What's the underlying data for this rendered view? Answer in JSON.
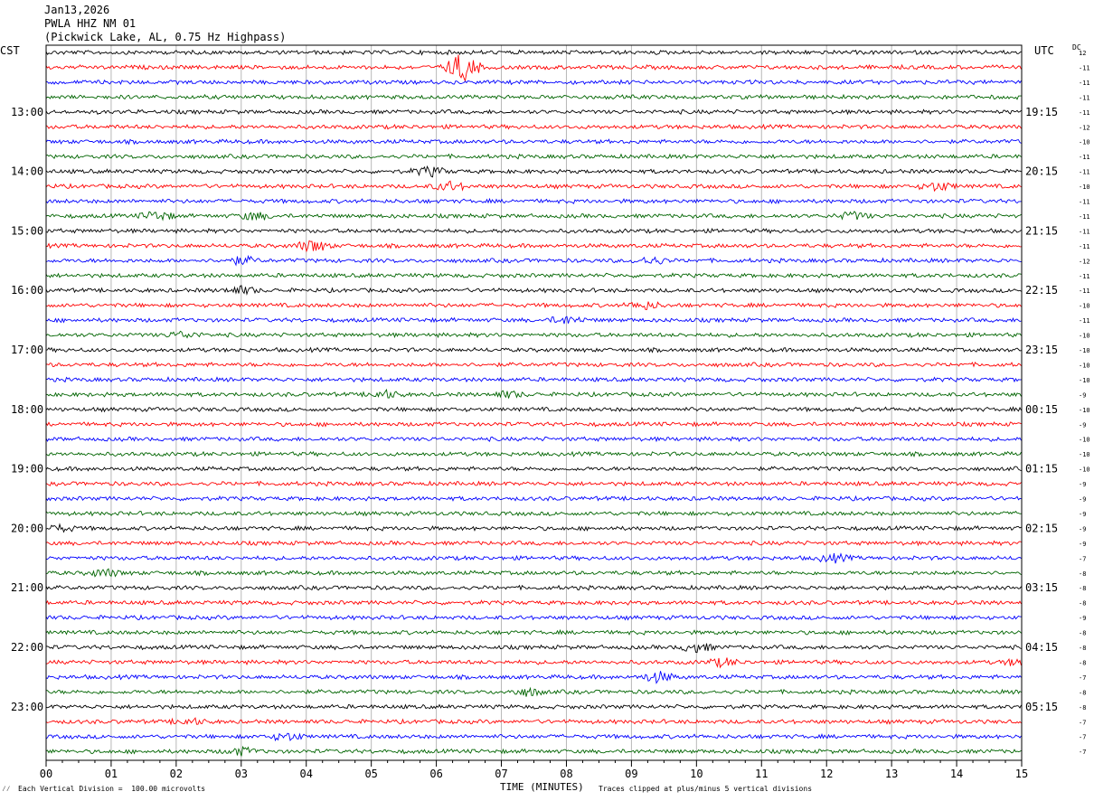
{
  "header": {
    "date": "Jan13,2026",
    "station": "PWLA HHZ NM 01",
    "location": "(Pickwick Lake, AL, 0.75 Hz Highpass)"
  },
  "left_zone": "CST",
  "right_zone": "UTC",
  "dc_label": "DC",
  "footer": {
    "scale": "Each Vertical Division =  100.00 microvolts",
    "clipping": "Traces clipped at plus/minus 5 vertical divisions",
    "corner_mark": "⁄⁄"
  },
  "chart_data": {
    "type": "line",
    "xlabel": "TIME (MINUTES)",
    "x_ticks": [
      "00",
      "01",
      "02",
      "03",
      "04",
      "05",
      "06",
      "07",
      "08",
      "09",
      "10",
      "11",
      "12",
      "13",
      "14",
      "15"
    ],
    "xlim": [
      0,
      15
    ],
    "trace_count": 48,
    "trace_colors": [
      "#000000",
      "#ff0000",
      "#0000ff",
      "#006400"
    ],
    "left_hour_labels": [
      "13:00",
      "14:00",
      "15:00",
      "16:00",
      "17:00",
      "18:00",
      "19:00",
      "20:00",
      "21:00",
      "22:00",
      "23:00"
    ],
    "right_hour_labels": [
      "19:15",
      "20:15",
      "21:15",
      "22:15",
      "23:15",
      "00:15",
      "01:15",
      "02:15",
      "03:15",
      "04:15",
      "05:15"
    ],
    "dc_offsets": [
      "12",
      "-11",
      "-11",
      "-11",
      "-11",
      "-12",
      "-10",
      "-11",
      "-11",
      "-10",
      "-11",
      "-11",
      "-11",
      "-11",
      "-12",
      "-11",
      "-11",
      "-10",
      "-11",
      "-10",
      "-10",
      "-10",
      "-10",
      "-9",
      "-10",
      "-9",
      "-10",
      "-10",
      "-10",
      "-9",
      "-9",
      "-9",
      "-9",
      "-9",
      "-7",
      "-8",
      "-8",
      "-8",
      "-9",
      "-8",
      "-8",
      "-8",
      "-7",
      "-8",
      "-8",
      "-7",
      "-7",
      "-7"
    ],
    "events": [
      {
        "trace": 2,
        "minute": 6.4,
        "strength": 10
      },
      {
        "trace": 9,
        "minute": 5.9,
        "strength": 3
      },
      {
        "trace": 10,
        "minute": 6.2,
        "strength": 3
      },
      {
        "trace": 10,
        "minute": 13.7,
        "strength": 3
      },
      {
        "trace": 12,
        "minute": 1.7,
        "strength": 3
      },
      {
        "trace": 12,
        "minute": 3.2,
        "strength": 2.5
      },
      {
        "trace": 12,
        "minute": 12.4,
        "strength": 2.5
      },
      {
        "trace": 14,
        "minute": 4.1,
        "strength": 4
      },
      {
        "trace": 15,
        "minute": 3.0,
        "strength": 2.5
      },
      {
        "trace": 15,
        "minute": 9.3,
        "strength": 2.5
      },
      {
        "trace": 17,
        "minute": 3.0,
        "strength": 2.5
      },
      {
        "trace": 18,
        "minute": 9.2,
        "strength": 2.5
      },
      {
        "trace": 19,
        "minute": 8.0,
        "strength": 2.5
      },
      {
        "trace": 20,
        "minute": 2.1,
        "strength": 2
      },
      {
        "trace": 24,
        "minute": 5.2,
        "strength": 2.5
      },
      {
        "trace": 24,
        "minute": 7.1,
        "strength": 2
      },
      {
        "trace": 33,
        "minute": 0.2,
        "strength": 2
      },
      {
        "trace": 35,
        "minute": 12.1,
        "strength": 2.5
      },
      {
        "trace": 36,
        "minute": 0.9,
        "strength": 2.5
      },
      {
        "trace": 41,
        "minute": 10.0,
        "strength": 3
      },
      {
        "trace": 42,
        "minute": 10.4,
        "strength": 2.5
      },
      {
        "trace": 42,
        "minute": 15.0,
        "strength": 3
      },
      {
        "trace": 43,
        "minute": 9.4,
        "strength": 3.5
      },
      {
        "trace": 44,
        "minute": 7.4,
        "strength": 2.5
      },
      {
        "trace": 46,
        "minute": 2.2,
        "strength": 2
      },
      {
        "trace": 47,
        "minute": 3.7,
        "strength": 2.5
      },
      {
        "trace": 48,
        "minute": 3.0,
        "strength": 2.5
      }
    ]
  }
}
